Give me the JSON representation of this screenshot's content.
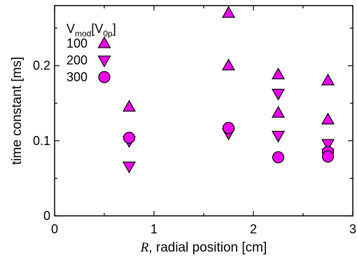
{
  "chart_data": {
    "type": "scatter",
    "xlabel_var": "R",
    "xlabel_rest": ", radial position [cm]",
    "ylabel": "time constant [ms]",
    "xlim": [
      0,
      3
    ],
    "ylim": [
      0,
      0.28
    ],
    "x_ticks": [
      "0",
      "1",
      "2",
      "3"
    ],
    "y_ticks": [
      "0",
      "0.1",
      "0.2"
    ],
    "x_tick_values": [
      0,
      1,
      2,
      3
    ],
    "y_tick_values": [
      0,
      0.1,
      0.2
    ],
    "legend": {
      "title_main": "V",
      "title_sub1": "mod",
      "title_mid": "[V",
      "title_sub2": "0p",
      "title_end": "]",
      "placement": "top-left"
    },
    "marker_color": "#ee00ee",
    "series": [
      {
        "name": "100",
        "marker": "triangle-up",
        "points": [
          [
            0.75,
            0.145
          ],
          [
            1.75,
            0.27
          ],
          [
            1.75,
            0.2
          ],
          [
            2.25,
            0.188
          ],
          [
            2.25,
            0.137
          ],
          [
            2.75,
            0.18
          ],
          [
            2.75,
            0.128
          ]
        ]
      },
      {
        "name": "200",
        "marker": "triangle-down",
        "points": [
          [
            0.75,
            0.066
          ],
          [
            0.75,
            0.1
          ],
          [
            1.75,
            0.11
          ],
          [
            2.25,
            0.163
          ],
          [
            2.25,
            0.107
          ],
          [
            2.75,
            0.096
          ],
          [
            2.75,
            0.083
          ]
        ]
      },
      {
        "name": "300",
        "marker": "circle",
        "points": [
          [
            0.75,
            0.104
          ],
          [
            1.75,
            0.117
          ],
          [
            2.25,
            0.078
          ],
          [
            2.75,
            0.085
          ],
          [
            2.75,
            0.079
          ]
        ]
      }
    ]
  }
}
